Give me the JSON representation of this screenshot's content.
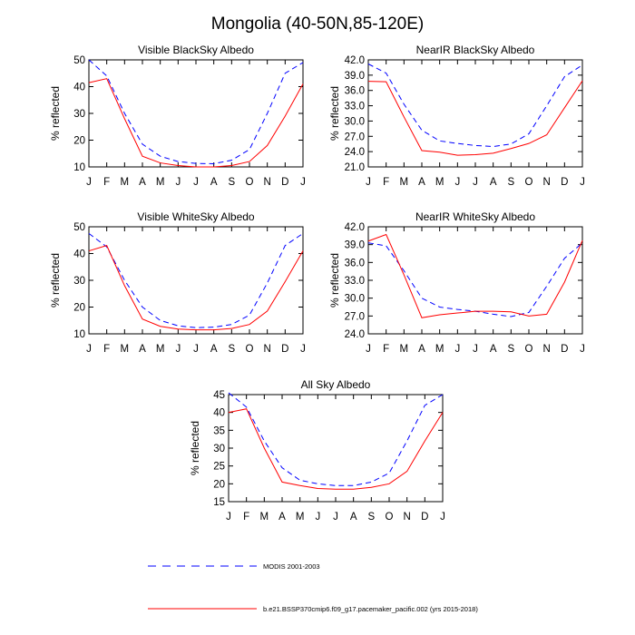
{
  "figure": {
    "title": "Mongolia (40-50N,85-120E)"
  },
  "legend": {
    "modis_label": "MODIS 2001-2003",
    "model_label": "b.e21.BSSP370cmip6.f09_g17.pacemaker_pacific.002 (yrs 2015-2018)"
  },
  "colors": {
    "modis": "#0000ff",
    "model": "#ff0000",
    "axis": "#000000"
  },
  "chart_data": [
    {
      "type": "line",
      "title": "Visible BlackSky Albedo",
      "ylabel": "% reflected",
      "x": [
        "J",
        "F",
        "M",
        "A",
        "M",
        "J",
        "J",
        "A",
        "S",
        "O",
        "N",
        "D",
        "J"
      ],
      "ylim": [
        10,
        50
      ],
      "yticks": [
        "10",
        "20",
        "30",
        "40",
        "50"
      ],
      "series": [
        {
          "name": "MODIS 2001-2003",
          "style": "dashed",
          "values": [
            50,
            44,
            30,
            18.5,
            14,
            12,
            11.3,
            11.2,
            12.5,
            16.5,
            30,
            45,
            49
          ]
        },
        {
          "name": "b.e21.BSSP370cmip6.f09_g17.pacemaker_pacific.002 (yrs 2015-2018)",
          "style": "solid",
          "values": [
            41.5,
            43,
            28,
            14,
            11.5,
            10.5,
            10,
            10,
            10.5,
            12,
            18,
            29,
            41
          ]
        }
      ]
    },
    {
      "type": "line",
      "title": "NearIR BlackSky Albedo",
      "ylabel": "% reflected",
      "x": [
        "J",
        "F",
        "M",
        "A",
        "M",
        "J",
        "J",
        "A",
        "S",
        "O",
        "N",
        "D",
        "J"
      ],
      "ylim": [
        21,
        42
      ],
      "yticks": [
        "21.0",
        "24.0",
        "27.0",
        "30.0",
        "33.0",
        "36.0",
        "39.0",
        "42.0"
      ],
      "series": [
        {
          "name": "MODIS 2001-2003",
          "style": "dashed",
          "values": [
            41.2,
            39.4,
            33.3,
            28.2,
            26.1,
            25.6,
            25.2,
            25,
            25.5,
            27.5,
            33,
            38.7,
            41
          ]
        },
        {
          "name": "b.e21.BSSP370cmip6.f09_g17.pacemaker_pacific.002 (yrs 2015-2018)",
          "style": "solid",
          "values": [
            37.8,
            37.7,
            30.8,
            24.2,
            23.9,
            23.3,
            23.4,
            23.7,
            24.6,
            25.6,
            27.3,
            32.6,
            37.9
          ]
        }
      ]
    },
    {
      "type": "line",
      "title": "Visible WhiteSky Albedo",
      "ylabel": "% reflected",
      "x": [
        "J",
        "F",
        "M",
        "A",
        "M",
        "J",
        "J",
        "A",
        "S",
        "O",
        "N",
        "D",
        "J"
      ],
      "ylim": [
        10,
        50
      ],
      "yticks": [
        "10",
        "20",
        "30",
        "40",
        "50"
      ],
      "series": [
        {
          "name": "MODIS 2001-2003",
          "style": "dashed",
          "values": [
            47.5,
            42.5,
            30,
            20,
            15,
            13,
            12.3,
            12.5,
            13.5,
            17,
            29,
            43,
            47.5
          ]
        },
        {
          "name": "b.e21.BSSP370cmip6.f09_g17.pacemaker_pacific.002 (yrs 2015-2018)",
          "style": "solid",
          "values": [
            41,
            43,
            28,
            15.5,
            12.8,
            11.8,
            11.5,
            11.5,
            12,
            13.5,
            18.5,
            29.5,
            41
          ]
        }
      ]
    },
    {
      "type": "line",
      "title": "NearIR WhiteSky Albedo",
      "ylabel": "% reflected",
      "x": [
        "J",
        "F",
        "M",
        "A",
        "M",
        "J",
        "J",
        "A",
        "S",
        "O",
        "N",
        "D",
        "J"
      ],
      "ylim": [
        24,
        42
      ],
      "yticks": [
        "24.0",
        "27.0",
        "30.0",
        "33.0",
        "36.0",
        "39.0",
        "42.0"
      ],
      "series": [
        {
          "name": "MODIS 2001-2003",
          "style": "dashed",
          "values": [
            39.3,
            38.8,
            34.6,
            30,
            28.5,
            28.1,
            27.8,
            27.3,
            26.9,
            27.6,
            32,
            36.7,
            39.3
          ]
        },
        {
          "name": "b.e21.BSSP370cmip6.f09_g17.pacemaker_pacific.002 (yrs 2015-2018)",
          "style": "solid",
          "values": [
            39.6,
            40.7,
            33.9,
            26.7,
            27.2,
            27.5,
            27.8,
            27.8,
            27.7,
            27,
            27.3,
            32.7,
            39.7
          ]
        }
      ]
    },
    {
      "type": "line",
      "title": "All Sky Albedo",
      "ylabel": "% reflected",
      "x": [
        "J",
        "F",
        "M",
        "A",
        "M",
        "J",
        "J",
        "A",
        "S",
        "O",
        "N",
        "D",
        "J"
      ],
      "ylim": [
        15,
        45
      ],
      "yticks": [
        "15",
        "20",
        "25",
        "30",
        "35",
        "40",
        "45"
      ],
      "series": [
        {
          "name": "MODIS 2001-2003",
          "style": "dashed",
          "values": [
            45.5,
            41.5,
            32,
            24.5,
            21,
            20,
            19.5,
            19.5,
            20.5,
            23,
            32,
            42,
            45
          ]
        },
        {
          "name": "b.e21.BSSP370cmip6.f09_g17.pacemaker_pacific.002 (yrs 2015-2018)",
          "style": "solid",
          "values": [
            40,
            41,
            30,
            20.5,
            19.5,
            18.7,
            18.5,
            18.5,
            19,
            20,
            23.5,
            32,
            40
          ]
        }
      ]
    }
  ]
}
